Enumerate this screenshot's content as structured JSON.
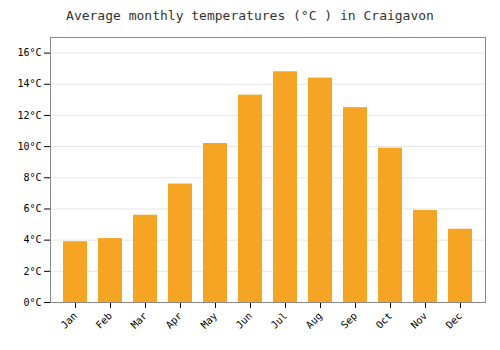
{
  "chart_data": {
    "type": "bar",
    "title": "Average monthly temperatures (°C ) in Craigavon",
    "categories": [
      "Jan",
      "Feb",
      "Mar",
      "Apr",
      "May",
      "Jun",
      "Jul",
      "Aug",
      "Sep",
      "Oct",
      "Nov",
      "Dec"
    ],
    "values": [
      3.9,
      4.1,
      5.6,
      7.6,
      10.2,
      13.3,
      14.8,
      14.4,
      12.5,
      9.9,
      5.9,
      4.7
    ],
    "color": "#F5A523",
    "ylim": [
      0,
      17
    ],
    "yticks": [
      {
        "value": 0,
        "label": "0°C"
      },
      {
        "value": 2,
        "label": "2°C"
      },
      {
        "value": 4,
        "label": "4°C"
      },
      {
        "value": 6,
        "label": "6°C"
      },
      {
        "value": 8,
        "label": "8°C"
      },
      {
        "value": 10,
        "label": "10°C"
      },
      {
        "value": 12,
        "label": "12°C"
      },
      {
        "value": 14,
        "label": "14°C"
      },
      {
        "value": 16,
        "label": "16°C"
      }
    ],
    "grid": true
  }
}
